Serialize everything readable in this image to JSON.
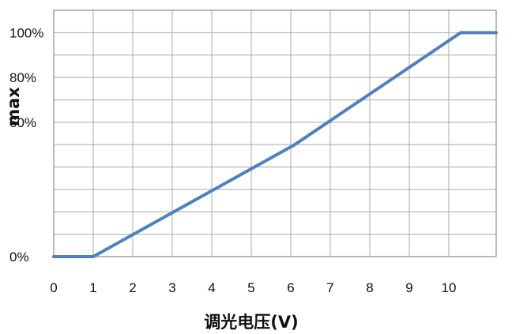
{
  "chart_data": {
    "type": "line",
    "title": "",
    "xlabel": "调光电压(V)",
    "ylabel": "max",
    "xlim": [
      0,
      11.2
    ],
    "ylim": [
      0,
      110
    ],
    "x_ticks": [
      0,
      1,
      2,
      3,
      4,
      5,
      6,
      7,
      8,
      9,
      10
    ],
    "x_tick_labels": [
      "0",
      "1",
      "2",
      "3",
      "4",
      "5",
      "6",
      "7",
      "8",
      "9",
      "10"
    ],
    "y_ticks": [
      0,
      60,
      80,
      100
    ],
    "y_tick_labels": [
      "0%",
      "60%",
      "80%",
      "100%"
    ],
    "grid": true,
    "series": [
      {
        "x": [
          0,
          1,
          6.1,
          10.3,
          11.2
        ],
        "y": [
          0,
          0,
          50,
          100,
          100
        ]
      }
    ],
    "color": "#4f81bd"
  }
}
